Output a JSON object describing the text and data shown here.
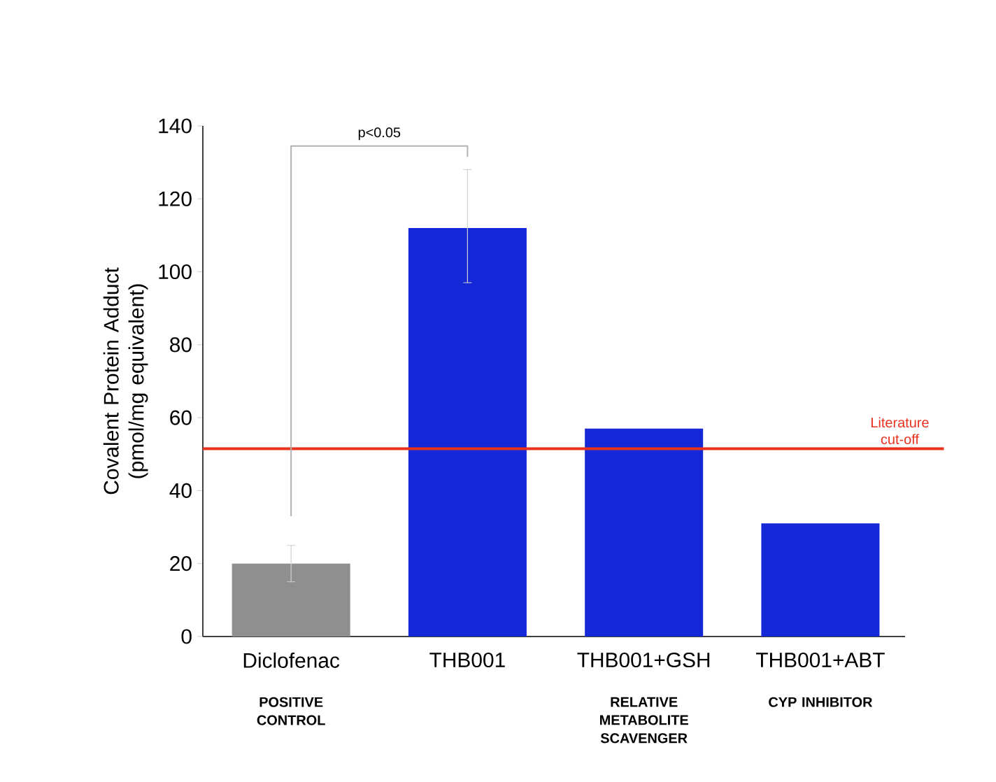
{
  "chart_data": {
    "type": "bar",
    "ylabel": "Covalent Protein Adduct (pmol/mg equivalent)",
    "categories": [
      "Diclofenac",
      "THB001",
      "THB001+GSH",
      "THB001+ABT"
    ],
    "values": [
      20,
      112,
      57,
      31
    ],
    "colors": [
      "#8f8f8f",
      "#1428d8",
      "#1428d8",
      "#1428d8"
    ],
    "errors": [
      [
        15,
        25
      ],
      [
        97,
        128
      ],
      null,
      null
    ],
    "ylim": [
      0,
      140
    ],
    "yticks": [
      0,
      20,
      40,
      60,
      80,
      100,
      120,
      140
    ],
    "ref_lines": [
      {
        "axis": "y",
        "value": 51.5,
        "label": "Literature cut-off",
        "color": "#e8321e"
      }
    ],
    "annotations": [
      "p<0.05",
      "POSITIVE CONTROL",
      "RELATIVE METABOLITE SCAVENGER",
      "CYP INHIBITOR"
    ],
    "grid": false
  }
}
